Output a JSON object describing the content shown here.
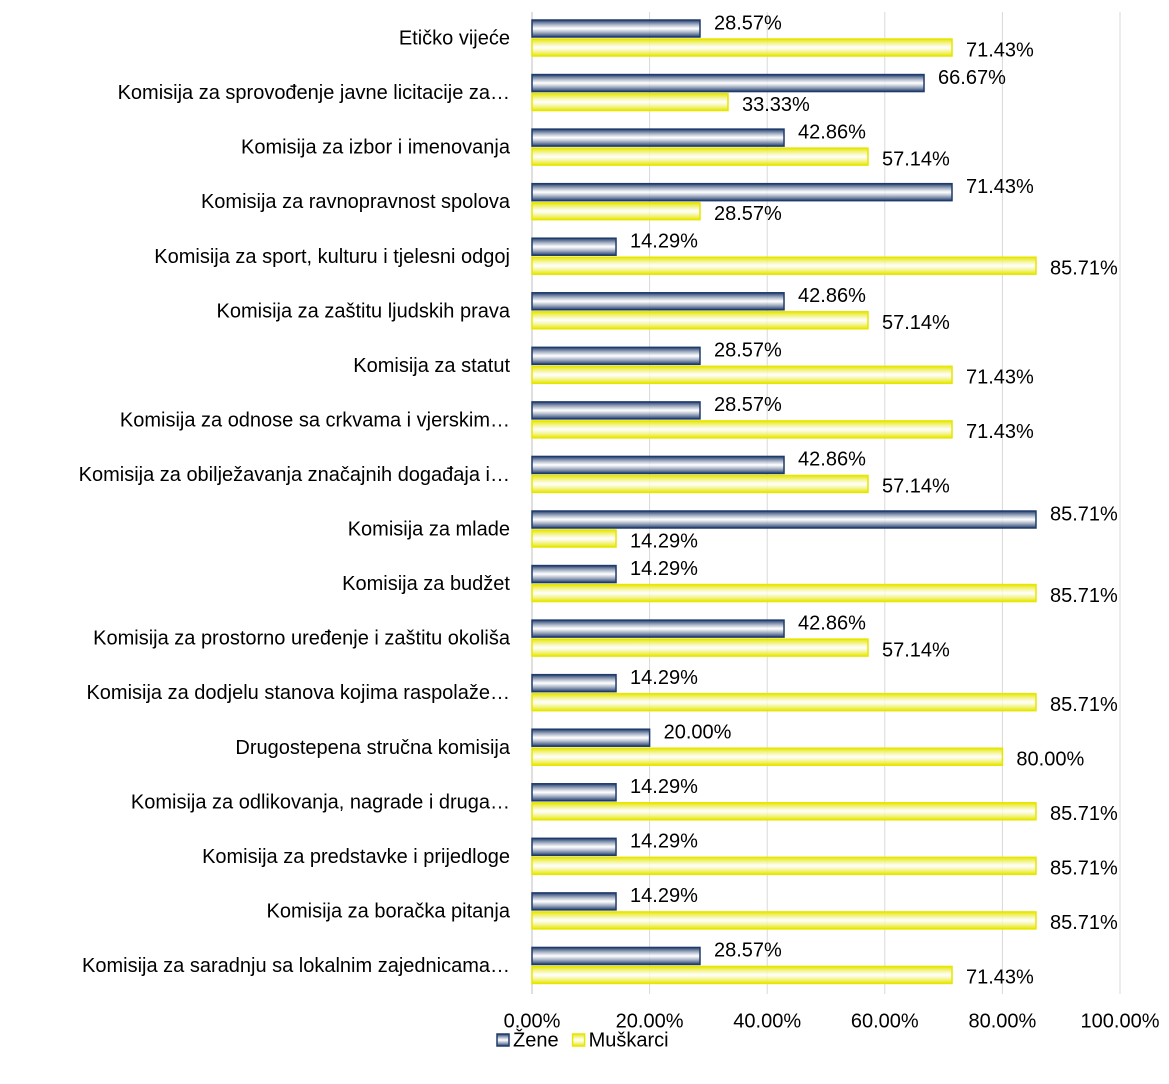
{
  "chart_data": {
    "type": "bar",
    "orientation": "horizontal",
    "categories": [
      "Etičko vijeće",
      "Komisija za sprovođenje javne licitacije za…",
      "Komisija za izbor i imenovanja",
      "Komisija za ravnopravnost spolova",
      "Komisija za sport, kulturu i tjelesni odgoj",
      "Komisija za zaštitu ljudskih prava",
      "Komisija za statut",
      "Komisija za odnose sa crkvama i vjerskim…",
      "Komisija za obilježavanja značajnih događaja i…",
      "Komisija za mlade",
      "Komisija za budžet",
      "Komisija za prostorno uređenje i zaštitu okoliša",
      "Komisija za dodjelu stanova kojima raspolaže…",
      "Drugostepena stručna komisija",
      "Komisija za odlikovanja, nagrade i druga…",
      "Komisija za predstavke i prijedloge",
      "Komisija za boračka pitanja",
      "Komisija za saradnju sa lokalnim zajednicama…"
    ],
    "series": [
      {
        "name": "Žene",
        "color": "#1f3b6b",
        "values": [
          28.57,
          66.67,
          42.86,
          71.43,
          14.29,
          42.86,
          28.57,
          28.57,
          42.86,
          85.71,
          14.29,
          42.86,
          14.29,
          20.0,
          14.29,
          14.29,
          14.29,
          28.57
        ],
        "value_labels": [
          "28.57%",
          "66.67%",
          "42.86%",
          "71.43%",
          "14.29%",
          "42.86%",
          "28.57%",
          "28.57%",
          "42.86%",
          "85.71%",
          "14.29%",
          "42.86%",
          "14.29%",
          "20.00%",
          "14.29%",
          "14.29%",
          "14.29%",
          "28.57%"
        ]
      },
      {
        "name": "Muškarci",
        "color": "#e6e600",
        "values": [
          71.43,
          33.33,
          57.14,
          28.57,
          85.71,
          57.14,
          71.43,
          71.43,
          57.14,
          14.29,
          85.71,
          57.14,
          85.71,
          80.0,
          85.71,
          85.71,
          85.71,
          71.43
        ],
        "value_labels": [
          "71.43%",
          "33.33%",
          "57.14%",
          "28.57%",
          "85.71%",
          "57.14%",
          "71.43%",
          "71.43%",
          "57.14%",
          "14.29%",
          "85.71%",
          "57.14%",
          "85.71%",
          "80.00%",
          "85.71%",
          "85.71%",
          "85.71%",
          "71.43%"
        ]
      }
    ],
    "xlim": [
      0,
      100
    ],
    "xticks": [
      {
        "value": 0,
        "label": "0.00%"
      },
      {
        "value": 20,
        "label": "20.00%"
      },
      {
        "value": 40,
        "label": "40.00%"
      },
      {
        "value": 60,
        "label": "60.00%"
      },
      {
        "value": 80,
        "label": "80.00%"
      },
      {
        "value": 100,
        "label": "100.00%"
      }
    ],
    "grid": true,
    "legend": "bottom"
  }
}
